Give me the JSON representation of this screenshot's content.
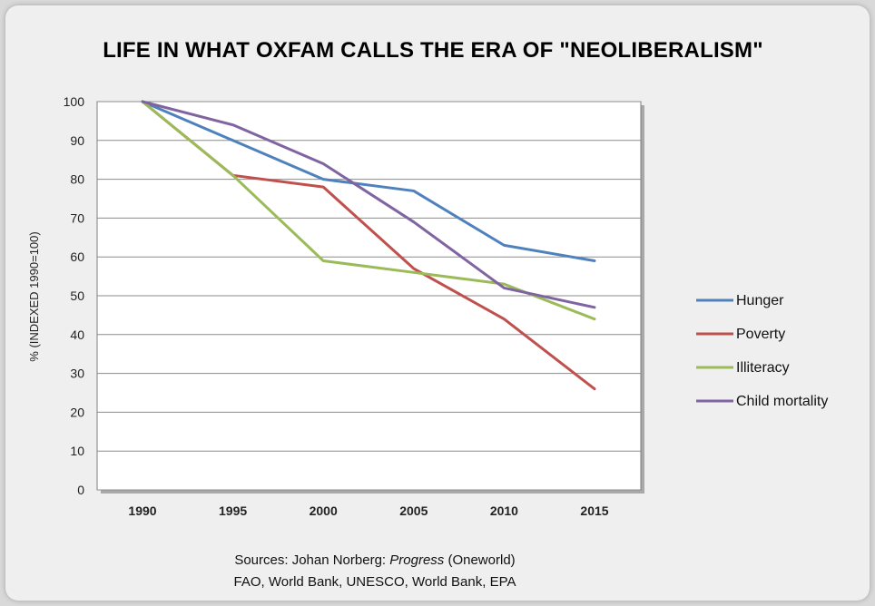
{
  "chart_data": {
    "type": "line",
    "title": "LIFE IN WHAT OXFAM CALLS THE ERA OF \"NEOLIBERALISM\"",
    "ylabel": "% (INDEXED 1990=100)",
    "xlabel": "",
    "x": [
      "1990",
      "1995",
      "2000",
      "2005",
      "2010",
      "2015"
    ],
    "ylim": [
      0,
      100
    ],
    "yticks": [
      0,
      10,
      20,
      30,
      40,
      50,
      60,
      70,
      80,
      90,
      100
    ],
    "grid": true,
    "legend_position": "right",
    "series": [
      {
        "name": "Hunger",
        "color": "#4f81bd",
        "values": [
          100,
          90,
          80,
          77,
          63,
          59
        ]
      },
      {
        "name": "Poverty",
        "color": "#c0504d",
        "values": [
          100,
          81,
          78,
          57,
          44,
          26
        ]
      },
      {
        "name": "Illiteracy",
        "color": "#9bbb59",
        "values": [
          100,
          81,
          59,
          56,
          53,
          44
        ]
      },
      {
        "name": "Child mortality",
        "color": "#8064a2",
        "values": [
          100,
          94,
          84,
          69,
          52,
          47
        ]
      }
    ]
  },
  "sources": {
    "line1_prefix": "Sources: Johan Norberg: ",
    "line1_italic": "Progress",
    "line1_suffix": " (Oneworld)",
    "line2": "FAO, World Bank, UNESCO, World Bank, EPA"
  }
}
